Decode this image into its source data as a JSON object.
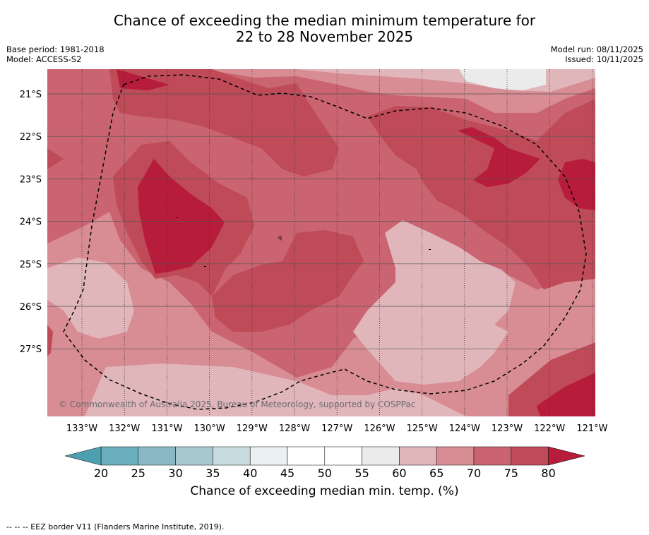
{
  "title": {
    "line1": "Chance of exceeding the median minimum temperature for",
    "line2": "22 to 28 November 2025"
  },
  "meta_left": {
    "base_period": "Base period: 1981-2018",
    "model": "Model: ACCESS-S2"
  },
  "meta_right": {
    "model_run": "Model run: 08/11/2025",
    "issued": "Issued: 10/11/2025"
  },
  "map": {
    "lat_labels": [
      "21°S",
      "22°S",
      "23°S",
      "24°S",
      "25°S",
      "26°S",
      "27°S"
    ],
    "lon_labels": [
      "133°W",
      "132°W",
      "131°W",
      "130°W",
      "129°W",
      "128°W",
      "127°W",
      "126°W",
      "125°W",
      "124°W",
      "123°W",
      "122°W",
      "121°W"
    ],
    "copyright": "© Commonwealth of Australia 2025, Bureau of Meteorology, supported by COSPPac"
  },
  "colorbar": {
    "ticks": [
      "20",
      "25",
      "30",
      "35",
      "40",
      "45",
      "50",
      "55",
      "60",
      "65",
      "70",
      "75",
      "80"
    ],
    "colors": [
      "#6aaebd",
      "#8ab9c5",
      "#a7c9cf",
      "#c8dbdf",
      "#eaf1f3",
      "#ffffff",
      "#ffffff",
      "#ebebeb",
      "#e0b6ba",
      "#d88c94",
      "#c96470",
      "#bf4a58"
    ],
    "under_color": "#4ea0b0",
    "over_color": "#b71c3a",
    "label": "Chance of exceeding median min. temp. (%)"
  },
  "palette": {
    "p60": "#e0b6ba",
    "p65": "#d88c94",
    "p70": "#c96470",
    "p75": "#bf4a58",
    "p80": "#b71c3a",
    "p55": "#ebebeb"
  },
  "footer": "--  --  -- EEZ border V11 (Flanders Marine Institute, 2019)."
}
